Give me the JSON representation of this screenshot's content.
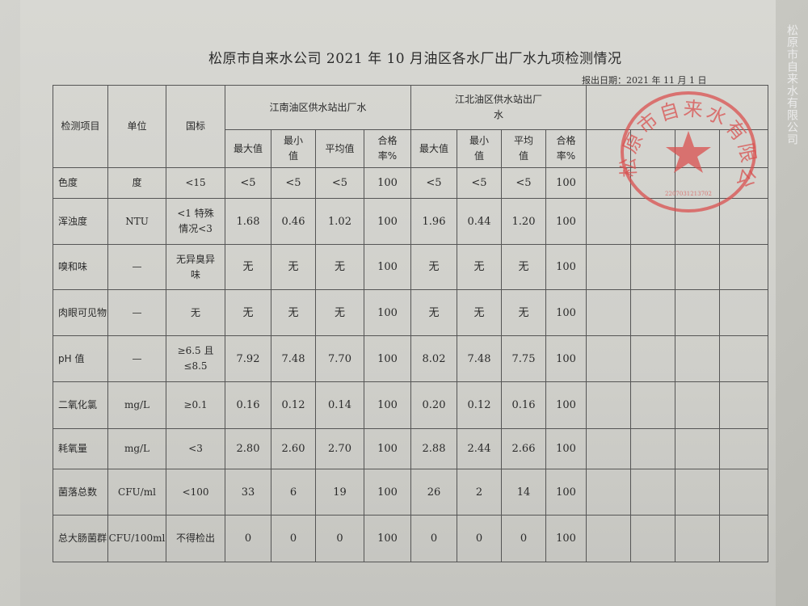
{
  "title": "松原市自来水公司 2021 年 10 月油区各水厂出厂水九项检测情况",
  "report_date": "报出日期：2021 年 11 月 1 日",
  "stamp_text": "松原市自来水有限公司",
  "stamp_number": "2207031213702",
  "watermark": "松原市自来水有限公司",
  "stamp_color": "#d9504f",
  "headers": {
    "item": "检测项目",
    "unit": "单位",
    "standard": "国标",
    "group1": "江南油区供水站出厂水",
    "group2": "江北油区供水站出厂水",
    "sub": [
      "最大值",
      "最小值",
      "平均值",
      "合格率%"
    ]
  },
  "rows": [
    {
      "item": "色度",
      "unit": "度",
      "standard": "<15",
      "g1": [
        "<5",
        "<5",
        "<5",
        "100"
      ],
      "g2": [
        "<5",
        "<5",
        "<5",
        "100"
      ]
    },
    {
      "item": "浑浊度",
      "unit": "NTU",
      "standard": "<1 特殊情况<3",
      "g1": [
        "1.68",
        "0.46",
        "1.02",
        "100"
      ],
      "g2": [
        "1.96",
        "0.44",
        "1.20",
        "100"
      ]
    },
    {
      "item": "嗅和味",
      "unit": "—",
      "standard": "无异臭异味",
      "g1": [
        "无",
        "无",
        "无",
        "100"
      ],
      "g2": [
        "无",
        "无",
        "无",
        "100"
      ]
    },
    {
      "item": "肉眼可见物",
      "unit": "—",
      "standard": "无",
      "g1": [
        "无",
        "无",
        "无",
        "100"
      ],
      "g2": [
        "无",
        "无",
        "无",
        "100"
      ]
    },
    {
      "item": "pH 值",
      "unit": "—",
      "standard": "≥6.5 且≤8.5",
      "g1": [
        "7.92",
        "7.48",
        "7.70",
        "100"
      ],
      "g2": [
        "8.02",
        "7.48",
        "7.75",
        "100"
      ]
    },
    {
      "item": "二氧化氯",
      "unit": "mg/L",
      "standard": "≥0.1",
      "g1": [
        "0.16",
        "0.12",
        "0.14",
        "100"
      ],
      "g2": [
        "0.20",
        "0.12",
        "0.16",
        "100"
      ]
    },
    {
      "item": "耗氧量",
      "unit": "mg/L",
      "standard": "<3",
      "g1": [
        "2.80",
        "2.60",
        "2.70",
        "100"
      ],
      "g2": [
        "2.88",
        "2.44",
        "2.66",
        "100"
      ]
    },
    {
      "item": "菌落总数",
      "unit": "CFU/ml",
      "standard": "<100",
      "g1": [
        "33",
        "6",
        "19",
        "100"
      ],
      "g2": [
        "26",
        "2",
        "14",
        "100"
      ]
    },
    {
      "item": "总大肠菌群",
      "unit": "CFU/100ml",
      "standard": "不得检出",
      "g1": [
        "0",
        "0",
        "0",
        "100"
      ],
      "g2": [
        "0",
        "0",
        "0",
        "100"
      ]
    }
  ]
}
